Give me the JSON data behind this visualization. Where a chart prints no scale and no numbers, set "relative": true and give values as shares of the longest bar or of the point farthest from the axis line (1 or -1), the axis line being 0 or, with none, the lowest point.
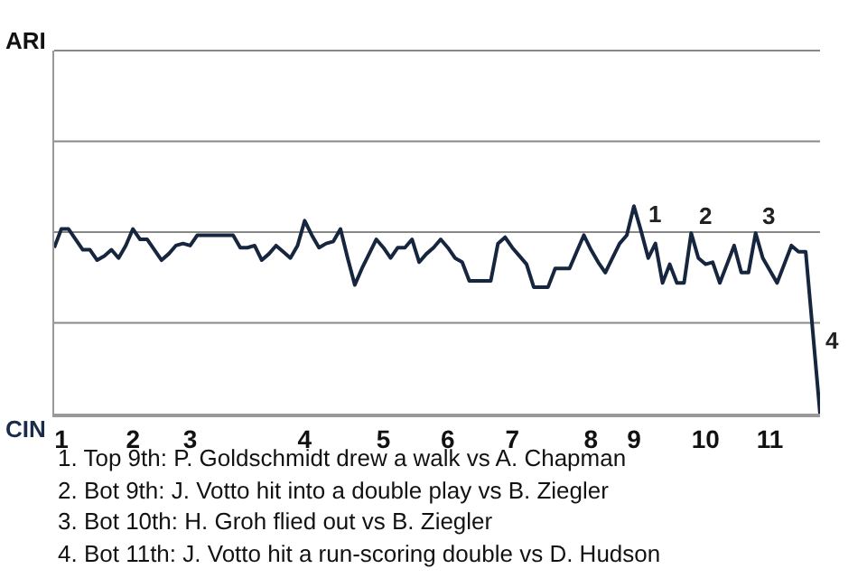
{
  "chart_data": {
    "type": "line",
    "relative": true,
    "categories": [
      null,
      "1",
      null,
      null,
      null,
      null,
      null,
      null,
      null,
      null,
      null,
      "2",
      null,
      null,
      null,
      null,
      null,
      null,
      null,
      "3",
      null,
      null,
      null,
      null,
      null,
      null,
      null,
      null,
      null,
      null,
      null,
      null,
      null,
      null,
      null,
      "4",
      null,
      null,
      null,
      null,
      null,
      null,
      null,
      null,
      null,
      null,
      "5",
      null,
      null,
      null,
      null,
      null,
      null,
      null,
      null,
      "6",
      null,
      null,
      null,
      null,
      null,
      null,
      null,
      null,
      "7",
      null,
      null,
      null,
      null,
      null,
      null,
      null,
      null,
      null,
      null,
      "8",
      null,
      null,
      null,
      null,
      null,
      "9",
      null,
      null,
      null,
      null,
      null,
      null,
      null,
      null,
      null,
      "10",
      null,
      null,
      null,
      null,
      null,
      null,
      null,
      null,
      "11",
      null,
      null,
      null,
      null,
      null,
      null,
      null
    ],
    "series": [
      {
        "color": "#17263f",
        "values": [
          0.8,
          0.89,
          0.89,
          0.84,
          0.79,
          0.79,
          0.74,
          0.76,
          0.79,
          0.75,
          0.81,
          0.89,
          0.84,
          0.84,
          0.79,
          0.74,
          0.77,
          0.81,
          0.82,
          0.81,
          0.86,
          0.86,
          0.86,
          0.86,
          0.86,
          0.86,
          0.8,
          0.8,
          0.81,
          0.74,
          0.77,
          0.81,
          0.78,
          0.75,
          0.81,
          0.93,
          0.86,
          0.8,
          0.82,
          0.83,
          0.89,
          0.75,
          0.62,
          0.7,
          0.77,
          0.84,
          0.8,
          0.75,
          0.8,
          0.8,
          0.84,
          0.73,
          0.77,
          0.8,
          0.84,
          0.8,
          0.75,
          0.73,
          0.64,
          0.64,
          0.64,
          0.64,
          0.82,
          0.85,
          0.8,
          0.76,
          0.72,
          0.61,
          0.61,
          0.61,
          0.7,
          0.7,
          0.7,
          0.78,
          0.86,
          0.79,
          0.73,
          0.68,
          0.75,
          0.82,
          0.86,
          1,
          0.88,
          0.75,
          0.82,
          0.63,
          0.72,
          0.63,
          0.63,
          0.87,
          0.75,
          0.72,
          0.73,
          0.63,
          0.72,
          0.81,
          0.68,
          0.68,
          0.87,
          0.75,
          0.69,
          0.63,
          0.72,
          0.81,
          0.78,
          0.78,
          0.39,
          0
        ]
      }
    ],
    "marker": "none",
    "line_style": "solid",
    "ref_lines": [
      {
        "axis": "y",
        "value": 0.4375,
        "color": "#888888"
      },
      {
        "axis": "y",
        "value": 0.875,
        "color": "#888888"
      },
      {
        "axis": "y",
        "value": 1.3125,
        "color": "#888888"
      }
    ],
    "annotations": [
      "ARI",
      "CIN",
      "4",
      {
        "text": "1",
        "y": 0.88
      },
      {
        "text": "2",
        "y": 0.87
      },
      {
        "text": "3",
        "y": 0.87
      },
      "1. Top 9th: P. Goldschmidt drew a walk vs A. Chapman",
      "2. Bot 9th: J. Votto hit into a double play vs B. Ziegler",
      "3. Bot 10th: H. Groh flied out vs B. Ziegler",
      "4. Bot 11th: J. Votto hit a run-scoring double vs D. Hudson"
    ]
  }
}
